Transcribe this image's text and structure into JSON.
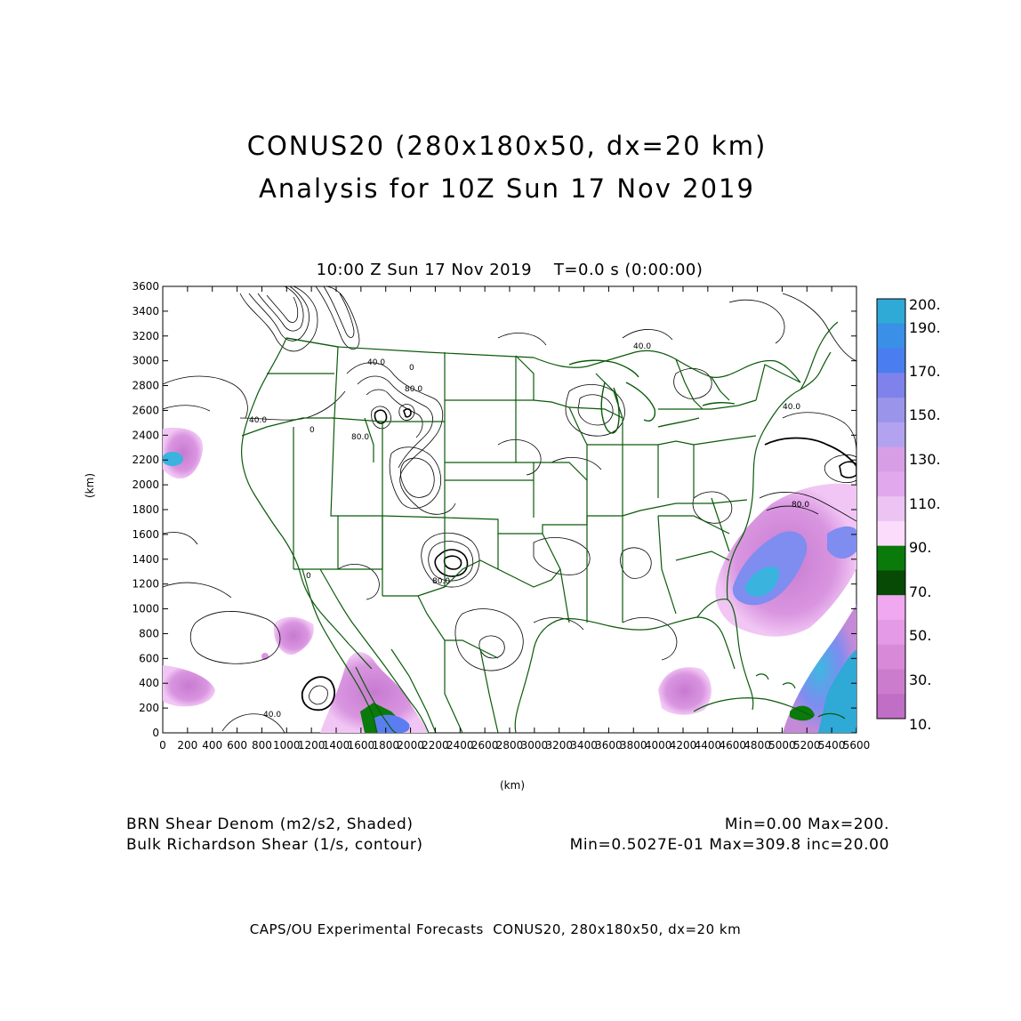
{
  "titles": {
    "line1": "CONUS20 (280x180x50, dx=20 km)",
    "line2": "Analysis for 10Z Sun 17 Nov 2019",
    "plot": "10:00 Z Sun 17 Nov 2019    T=0.0 s (0:00:00)"
  },
  "axes": {
    "x_label": "(km)",
    "y_label": "(km)",
    "x_ticks": [
      "0",
      "200",
      "400",
      "600",
      "800",
      "1000",
      "1200",
      "1400",
      "1600",
      "1800",
      "2000",
      "2200",
      "2400",
      "2600",
      "2800",
      "3000",
      "3200",
      "3400",
      "3600",
      "3800",
      "4000",
      "4200",
      "4400",
      "4600",
      "4800",
      "5000",
      "5200",
      "5400",
      "5600"
    ],
    "y_ticks": [
      "0",
      "200",
      "400",
      "600",
      "800",
      "1000",
      "1200",
      "1400",
      "1600",
      "1800",
      "2000",
      "2200",
      "2400",
      "2600",
      "2800",
      "3000",
      "3200",
      "3400",
      "3600"
    ]
  },
  "colorbar": {
    "labels": [
      "200.",
      "190.",
      "170.",
      "150.",
      "130.",
      "110.",
      "90.",
      "70.",
      "50.",
      "30.",
      "10."
    ],
    "colors": [
      "#2fa9d6",
      "#3a8fe6",
      "#4a7ef0",
      "#7e82ea",
      "#9a94ea",
      "#b3a2f0",
      "#d79ee6",
      "#e1a8ee",
      "#ecc4f4",
      "#fbdcfb",
      "#0a7a0a",
      "#064a06",
      "#f0a8f0",
      "#e49ae6",
      "#d88ad8",
      "#cc7ccc",
      "#c06ec6"
    ]
  },
  "contour_labels": [
    "40.0",
    "80.0",
    "40.0",
    "80.0",
    "80.0",
    "40.0",
    "40.0",
    "80.0",
    "40.0",
    "0",
    "0",
    "0"
  ],
  "footer": {
    "left1": "BRN Shear Denom (m2/s2, Shaded)",
    "left2": "Bulk Richardson Shear (1/s, contour)",
    "right1": "Min=0.00 Max=200.",
    "right2": "Min=0.5027E-01 Max=309.8 inc=20.00"
  },
  "credit": "CAPS/OU Experimental Forecasts  CONUS20, 280x180x50, dx=20 km",
  "colors": {
    "boundary": "#0a5a0a",
    "contour": "#000000",
    "frame": "#000000"
  }
}
